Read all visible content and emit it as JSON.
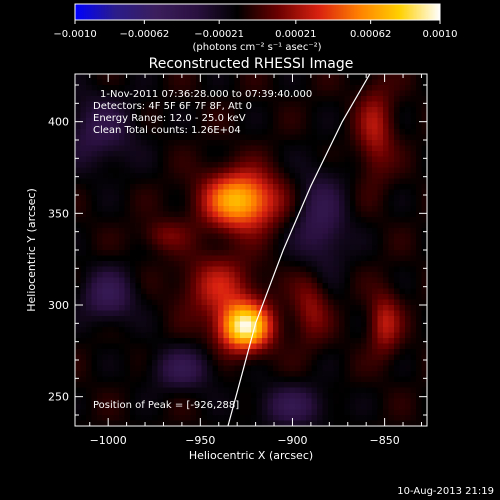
{
  "chart_data": {
    "type": "heatmap",
    "title": "Reconstructed RHESSI Image",
    "xlabel": "Heliocentric X (arcsec)",
    "ylabel": "Heliocentric Y (arcsec)",
    "xlim": [
      -1018,
      -827
    ],
    "ylim": [
      234,
      426
    ],
    "x_ticks": [
      -1000,
      -950,
      -900,
      -850
    ],
    "y_ticks": [
      250,
      300,
      350,
      400
    ],
    "x_tick_labels": [
      "−1000",
      "−950",
      "−900",
      "−850"
    ],
    "y_tick_labels": [
      "250",
      "300",
      "350",
      "400"
    ],
    "colorbar": {
      "range": [
        -0.001,
        0.001
      ],
      "ticks": [
        -0.001,
        -0.00062,
        -0.00021,
        0.00021,
        0.00062,
        0.001
      ],
      "tick_labels": [
        "−0.0010",
        "−0.00062",
        "−0.00021",
        "0.00021",
        "0.00062",
        "0.0010"
      ],
      "units_label": "(photons cm⁻² s⁻¹ asec⁻²)",
      "stops": [
        "#0000ff",
        "#2a1c8a",
        "#3b1e5c",
        "#2a1040",
        "#000000",
        "#6a0000",
        "#d82010",
        "#ff8000",
        "#ffd000",
        "#ffffff"
      ]
    },
    "sources": [
      {
        "x": -926,
        "y": 288,
        "amp": 1.0,
        "sx": 10,
        "sy": 9
      },
      {
        "x": -928,
        "y": 357,
        "amp": 0.82,
        "sx": 14,
        "sy": 11
      },
      {
        "x": -940,
        "y": 310,
        "amp": 0.35,
        "sx": 14,
        "sy": 12
      },
      {
        "x": -890,
        "y": 300,
        "amp": 0.28,
        "sx": 7,
        "sy": 14
      },
      {
        "x": -850,
        "y": 290,
        "amp": 0.35,
        "sx": 6,
        "sy": 12
      },
      {
        "x": -855,
        "y": 395,
        "amp": 0.32,
        "sx": 7,
        "sy": 18
      },
      {
        "x": -970,
        "y": 338,
        "amp": 0.2,
        "sx": 9,
        "sy": 6
      },
      {
        "x": -1000,
        "y": 305,
        "amp": -0.35,
        "sx": 10,
        "sy": 10
      },
      {
        "x": -885,
        "y": 345,
        "amp": -0.32,
        "sx": 10,
        "sy": 20
      },
      {
        "x": -960,
        "y": 265,
        "amp": -0.3,
        "sx": 12,
        "sy": 8
      },
      {
        "x": -1005,
        "y": 395,
        "amp": -0.28,
        "sx": 14,
        "sy": 14
      },
      {
        "x": -900,
        "y": 245,
        "amp": -0.3,
        "sx": 14,
        "sy": 8
      }
    ],
    "limb_arc": [
      [
        -935,
        234
      ],
      [
        -928,
        260
      ],
      [
        -920,
        290
      ],
      [
        -905,
        330
      ],
      [
        -890,
        365
      ],
      [
        -873,
        400
      ],
      [
        -858,
        426
      ]
    ],
    "annotations": {
      "time_range": "1-Nov-2011 07:36:28.000 to 07:39:40.000",
      "detectors": "Detectors: 4F 5F 6F 7F 8F, Att 0",
      "energy_range": "Energy Range: 12.0 - 25.0 keV",
      "clean_total": "Clean     Total counts: 1.26E+04",
      "peak_position": "Position of Peak = [-926,288]"
    },
    "grid": false,
    "date_stamp": "10-Aug-2013 21:19"
  }
}
